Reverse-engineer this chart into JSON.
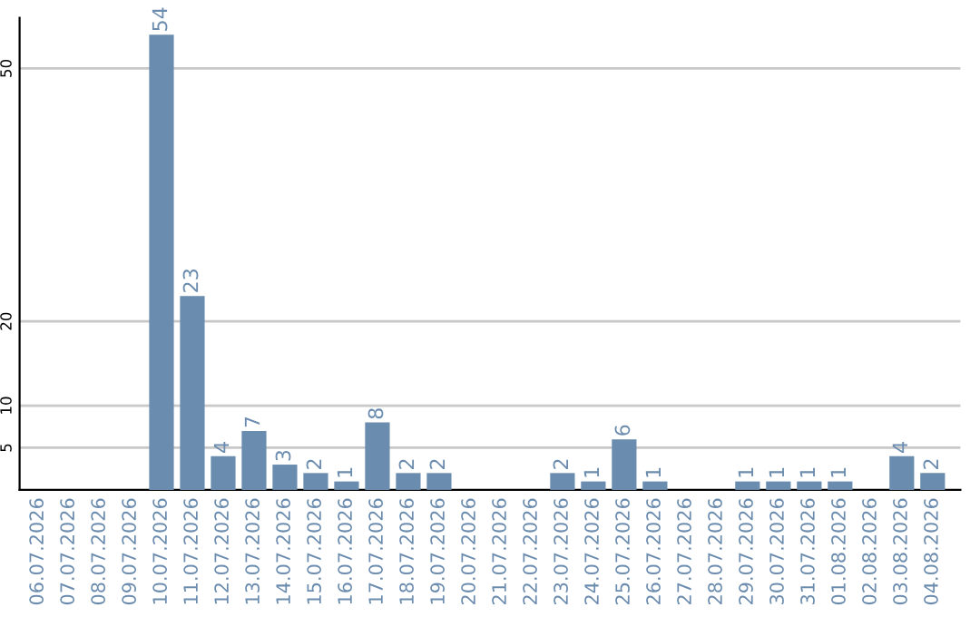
{
  "chart_data": {
    "type": "bar",
    "categories": [
      "06.07.2026",
      "07.07.2026",
      "08.07.2026",
      "09.07.2026",
      "10.07.2026",
      "11.07.2026",
      "12.07.2026",
      "13.07.2026",
      "14.07.2026",
      "15.07.2026",
      "16.07.2026",
      "17.07.2026",
      "18.07.2026",
      "19.07.2026",
      "20.07.2026",
      "21.07.2026",
      "22.07.2026",
      "23.07.2026",
      "24.07.2026",
      "25.07.2026",
      "26.07.2026",
      "27.07.2026",
      "28.07.2026",
      "29.07.2026",
      "30.07.2026",
      "31.07.2026",
      "01.08.2026",
      "02.08.2026",
      "03.08.2026",
      "04.08.2026"
    ],
    "values": [
      0,
      0,
      0,
      0,
      54,
      23,
      4,
      7,
      3,
      2,
      1,
      8,
      2,
      2,
      0,
      0,
      0,
      2,
      1,
      6,
      1,
      0,
      0,
      1,
      1,
      1,
      1,
      0,
      4,
      2
    ],
    "value_labels": [
      null,
      null,
      null,
      null,
      "54",
      "23",
      "4",
      "7",
      "3",
      "2",
      "1",
      "8",
      "2",
      "2",
      null,
      null,
      null,
      "2",
      "1",
      "6",
      "1",
      null,
      null,
      "1",
      "1",
      "1",
      "1",
      null,
      "4",
      "2"
    ],
    "color": "#6a8caf",
    "ylim": [
      0,
      56
    ],
    "yticks": [
      5,
      10,
      20,
      50
    ],
    "grid": "y"
  }
}
